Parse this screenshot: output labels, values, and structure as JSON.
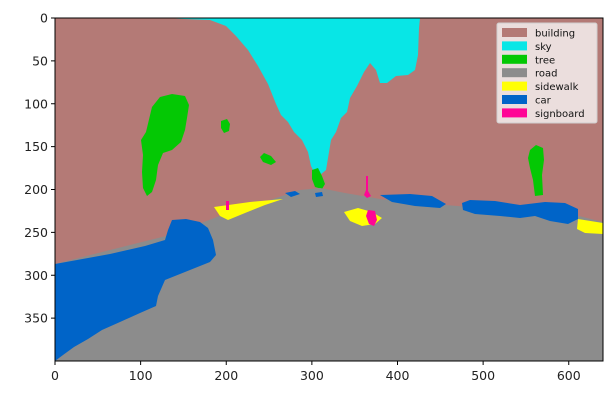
{
  "figure": {
    "legend": {
      "placement": "top-right",
      "items": [
        {
          "label": "building",
          "color": "#b47a76"
        },
        {
          "label": "sky",
          "color": "#08e6e6"
        },
        {
          "label": "tree",
          "color": "#04c804"
        },
        {
          "label": "road",
          "color": "#8c8c8c"
        },
        {
          "label": "sidewalk",
          "color": "#ffff04"
        },
        {
          "label": "car",
          "color": "#0064c8"
        },
        {
          "label": "signboard",
          "color": "#ff0596"
        }
      ]
    },
    "x_axis": {
      "range": [
        0,
        640
      ],
      "ticks": [
        {
          "value": 0,
          "label": "0"
        },
        {
          "value": 100,
          "label": "100"
        },
        {
          "value": 200,
          "label": "200"
        },
        {
          "value": 300,
          "label": "300"
        },
        {
          "value": 400,
          "label": "400"
        },
        {
          "value": 500,
          "label": "500"
        },
        {
          "value": 600,
          "label": "600"
        }
      ]
    },
    "y_axis": {
      "range": [
        0,
        400
      ],
      "inverted": true,
      "ticks": [
        {
          "value": 0,
          "label": "0"
        },
        {
          "value": 50,
          "label": "50"
        },
        {
          "value": 100,
          "label": "100"
        },
        {
          "value": 150,
          "label": "150"
        },
        {
          "value": 200,
          "label": "200"
        },
        {
          "value": 250,
          "label": "250"
        },
        {
          "value": 300,
          "label": "300"
        },
        {
          "value": 350,
          "label": "350"
        }
      ]
    }
  }
}
